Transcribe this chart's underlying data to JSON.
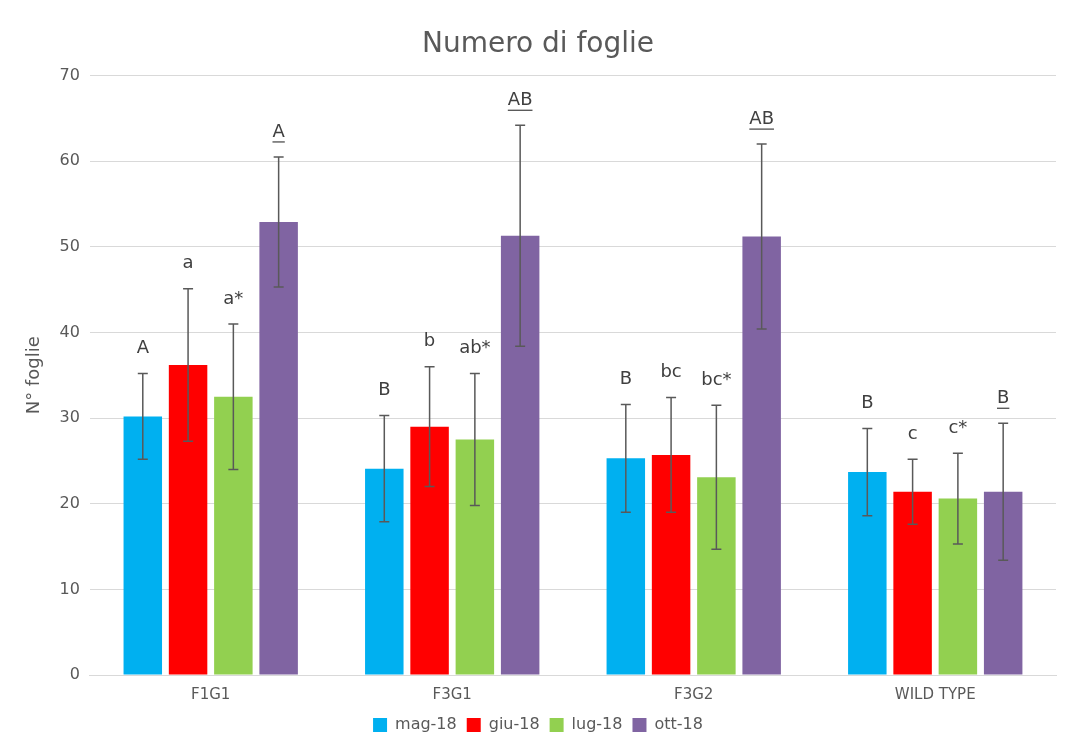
{
  "chart_data": {
    "type": "bar",
    "title": "Numero di foglie",
    "ylabel": "N° foglie",
    "categories": [
      "F1G1",
      "F3G1",
      "F3G2",
      "WILD TYPE"
    ],
    "series": [
      {
        "name": "mag-18",
        "color": "#00b0f0",
        "values": [
          30.2,
          24.1,
          25.3,
          23.7
        ],
        "errors": [
          5,
          6.2,
          6.3,
          5.1
        ]
      },
      {
        "name": "giu-18",
        "color": "#ff0000",
        "values": [
          36.2,
          29,
          25.7,
          21.4
        ],
        "errors": [
          8.9,
          7,
          6.7,
          3.8
        ]
      },
      {
        "name": "lug-18",
        "color": "#92d050",
        "values": [
          32.5,
          27.5,
          23.1,
          20.6
        ],
        "errors": [
          8.5,
          7.7,
          8.4,
          5.3
        ]
      },
      {
        "name": "ott-18",
        "color": "#8064a2",
        "values": [
          52.9,
          51.3,
          51.2,
          21.4
        ],
        "errors": [
          7.6,
          12.9,
          10.8,
          8
        ]
      }
    ],
    "annotations": [
      "A",
      "a",
      "a*",
      "A",
      "B",
      "b",
      "ab*",
      "AB",
      "B",
      "bc",
      "bc*",
      "AB",
      "B",
      "c",
      "c*",
      "B"
    ],
    "ylim": [
      0,
      70
    ],
    "yticks": [
      0,
      10,
      20,
      30,
      40,
      50,
      60,
      70
    ],
    "grid": "y",
    "legend": "bottom"
  }
}
